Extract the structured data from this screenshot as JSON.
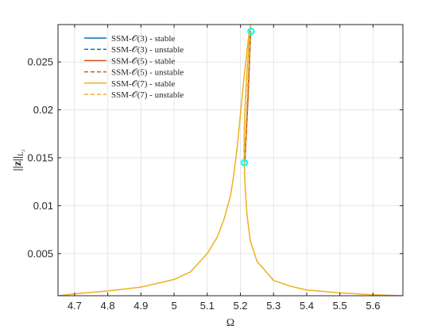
{
  "chart_data": {
    "type": "line",
    "title": "",
    "xlabel": "Ω",
    "ylabel": "||z||",
    "ylabel_sub": "L₂",
    "xlim": [
      4.65,
      5.69
    ],
    "ylim": [
      0.0006,
      0.0289
    ],
    "xticks": [
      4.7,
      4.8,
      4.9,
      5.0,
      5.1,
      5.2,
      5.3,
      5.4,
      5.5,
      5.6
    ],
    "xtick_labels": [
      "4.7",
      "4.8",
      "4.9",
      "5",
      "5.1",
      "5.2",
      "5.3",
      "5.4",
      "5.5",
      "5.6"
    ],
    "yticks": [
      0.005,
      0.01,
      0.015,
      0.02,
      0.025
    ],
    "ytick_labels": [
      "0.005",
      "0.01",
      "0.015",
      "0.02",
      "0.025"
    ],
    "grid": true,
    "legend_position": "top-left",
    "series": [
      {
        "name": "SSM-𝒪(3) - stable",
        "color": "#0072BD",
        "dash": "solid",
        "x": [
          5.213,
          5.218,
          5.223,
          5.229,
          5.231
        ],
        "y": [
          0.0145,
          0.018,
          0.0215,
          0.0265,
          0.0282
        ]
      },
      {
        "name": "SSM-𝒪(3) - unstable",
        "color": "#0072BD",
        "dash": "dashed",
        "x": [
          5.213,
          5.221,
          5.231
        ],
        "y": [
          0.0145,
          0.0213,
          0.0282
        ]
      },
      {
        "name": "SSM-𝒪(5) - stable",
        "color": "#D95319",
        "dash": "solid",
        "x": [
          5.2135,
          5.2185,
          5.2235,
          5.229,
          5.231
        ],
        "y": [
          0.0145,
          0.018,
          0.0215,
          0.0265,
          0.0282
        ]
      },
      {
        "name": "SSM-𝒪(5) - unstable",
        "color": "#D95319",
        "dash": "dashed",
        "x": [
          5.2135,
          5.2215,
          5.231
        ],
        "y": [
          0.0145,
          0.0213,
          0.0282
        ]
      },
      {
        "name": "SSM-𝒪(7) - stable",
        "color": "#EDB120",
        "dash": "solid",
        "x": [
          4.65,
          4.7,
          4.8,
          4.9,
          5.0,
          5.05,
          5.1,
          5.13,
          5.15,
          5.17,
          5.18,
          5.19,
          5.2,
          5.21,
          5.22,
          5.225,
          5.229,
          5.231,
          5.226,
          5.22,
          5.215,
          5.212,
          5.211,
          5.213,
          5.216,
          5.22,
          5.23,
          5.25,
          5.3,
          5.35,
          5.4,
          5.5,
          5.6,
          5.69
        ],
        "y": [
          0.0006,
          0.0008,
          0.0011,
          0.0015,
          0.0023,
          0.0031,
          0.005,
          0.0067,
          0.0085,
          0.011,
          0.0132,
          0.016,
          0.0195,
          0.023,
          0.0262,
          0.0277,
          0.0285,
          0.0289,
          0.027,
          0.024,
          0.021,
          0.0185,
          0.016,
          0.013,
          0.011,
          0.009,
          0.0063,
          0.0042,
          0.0022,
          0.0016,
          0.0012,
          0.0009,
          0.0007,
          0.0006
        ]
      },
      {
        "name": "SSM-𝒪(7) - unstable",
        "color": "#EDB120",
        "dash": "dashed",
        "x": [
          5.2125,
          5.221,
          5.2305
        ],
        "y": [
          0.0145,
          0.0213,
          0.0282
        ]
      }
    ],
    "markers": [
      {
        "x": 5.212,
        "y": 0.0145,
        "color": "#00FFFF",
        "shape": "circle"
      },
      {
        "x": 5.232,
        "y": 0.0282,
        "color": "#00FFFF",
        "shape": "circle"
      }
    ]
  }
}
